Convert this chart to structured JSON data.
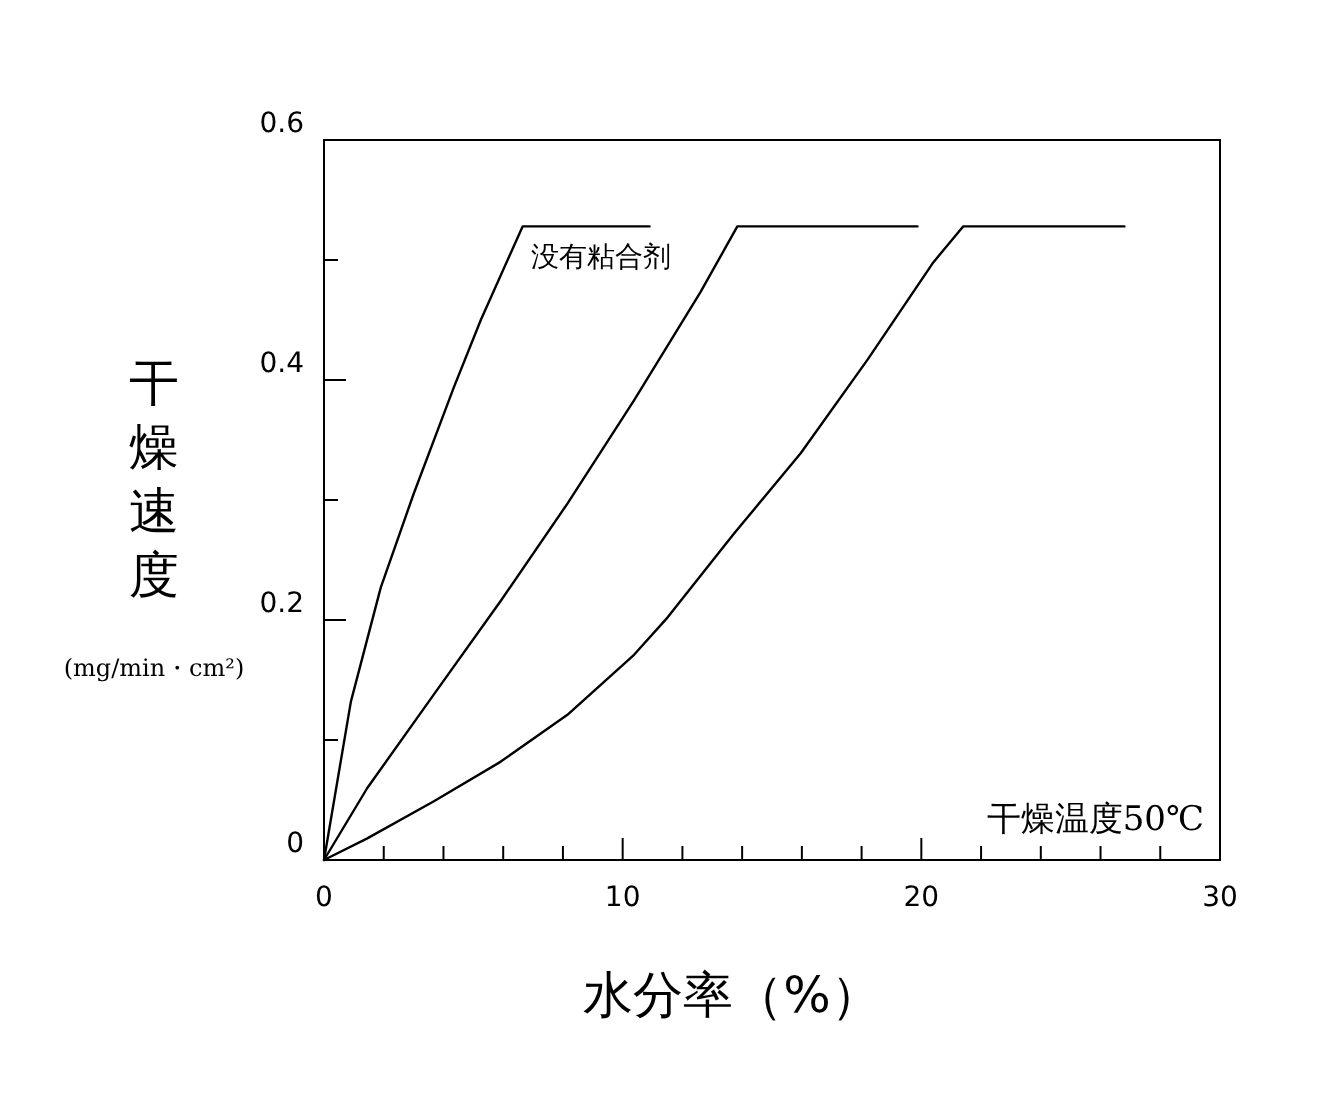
{
  "chart_data": {
    "type": "line",
    "xlabel": "水分率（%）",
    "ylabel": "干燥速度 (mg/min・cm²)",
    "xlim": [
      0,
      30
    ],
    "ylim": [
      0,
      0.6
    ],
    "xticks": [
      0,
      {
        "value": 2,
        "label": null
      },
      {
        "value": 4,
        "label": null
      },
      {
        "value": 6,
        "label": null
      },
      {
        "value": 8,
        "label": null
      },
      10,
      {
        "value": 12,
        "label": null
      },
      {
        "value": 14,
        "label": null
      },
      {
        "value": 16,
        "label": null
      },
      {
        "value": 18,
        "label": null
      },
      20,
      {
        "value": 22,
        "label": null
      },
      {
        "value": 24,
        "label": null
      },
      {
        "value": 26,
        "label": null
      },
      {
        "value": 28,
        "label": null
      },
      30
    ],
    "yticks": [
      0,
      {
        "value": 0.1,
        "label": null
      },
      0.2,
      {
        "value": 0.3,
        "label": null
      },
      0.4,
      {
        "value": 0.5,
        "label": null
      },
      0.6
    ],
    "grid": false,
    "marker": "none",
    "line_style": "solid",
    "annotations": [
      "干燥温度50℃"
    ],
    "series": [
      {
        "name": "没有粘合剂",
        "color": "#000000",
        "x": [
          0,
          0.9,
          1.9,
          3.0,
          4.35,
          5.25,
          6.65,
          10.9
        ],
        "values": [
          0,
          0.132,
          0.227,
          0.305,
          0.394,
          0.45,
          0.528,
          0.528
        ]
      },
      {
        "color": "#000000",
        "x": [
          0,
          1.45,
          3.68,
          5.92,
          8.15,
          10.38,
          12.6,
          13.84,
          19.87
        ],
        "values": [
          0,
          0.06,
          0.138,
          0.216,
          0.297,
          0.383,
          0.473,
          0.528,
          0.528
        ]
      },
      {
        "color": "#000000",
        "x": [
          0,
          1.45,
          3.68,
          5.92,
          8.15,
          10.38,
          11.5,
          13.73,
          15.96,
          18.2,
          20.4,
          21.4,
          26.8
        ],
        "values": [
          0,
          0.018,
          0.049,
          0.082,
          0.121,
          0.171,
          0.202,
          0.272,
          0.339,
          0.417,
          0.498,
          0.528,
          0.528
        ]
      }
    ]
  }
}
